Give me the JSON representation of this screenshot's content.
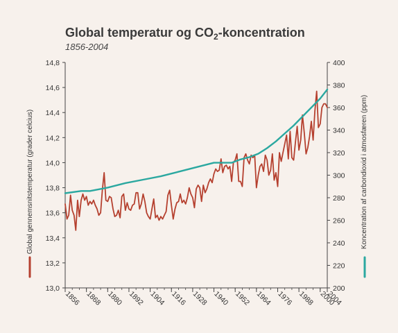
{
  "chart_data": {
    "type": "line",
    "title_main": "Global temperatur og CO",
    "title_sub": "2",
    "title_end": "-koncentration",
    "subtitle": "1856-2004",
    "ylabel_left": "Global gennemsnitstemperatur (grader celcius)",
    "ylabel_right": "Koncentration af carbondioxid i atmosfæren (ppm)",
    "xlim": [
      1856,
      2004
    ],
    "ylim_left": [
      13.0,
      14.8
    ],
    "ylim_right": [
      200,
      400
    ],
    "x_ticks": [
      "1856",
      "1868",
      "1880",
      "1892",
      "1904",
      "1916",
      "1928",
      "1940",
      "1952",
      "1964",
      "1976",
      "1988",
      "2000",
      "2004"
    ],
    "y_left_ticks": [
      "13,0",
      "13,2",
      "13,4",
      "13,6",
      "13,8",
      "14,0",
      "14,2",
      "14,4",
      "14,6",
      "14,8"
    ],
    "y_right_ticks": [
      "200",
      "220",
      "240",
      "260",
      "280",
      "300",
      "320",
      "340",
      "360",
      "380",
      "400"
    ],
    "colors": {
      "temperature": "#b5402f",
      "co2": "#2ba8a0",
      "axis": "#444444"
    },
    "series": [
      {
        "key": "temperature",
        "axis": "left",
        "x": [
          1856,
          1857,
          1858,
          1859,
          1860,
          1861,
          1862,
          1863,
          1864,
          1865,
          1866,
          1867,
          1868,
          1869,
          1870,
          1871,
          1872,
          1873,
          1874,
          1875,
          1876,
          1877,
          1878,
          1879,
          1880,
          1881,
          1882,
          1883,
          1884,
          1885,
          1886,
          1887,
          1888,
          1889,
          1890,
          1891,
          1892,
          1893,
          1894,
          1895,
          1896,
          1897,
          1898,
          1899,
          1900,
          1901,
          1902,
          1903,
          1904,
          1905,
          1906,
          1907,
          1908,
          1909,
          1910,
          1911,
          1912,
          1913,
          1914,
          1915,
          1916,
          1917,
          1918,
          1919,
          1920,
          1921,
          1922,
          1923,
          1924,
          1925,
          1926,
          1927,
          1928,
          1929,
          1930,
          1931,
          1932,
          1933,
          1934,
          1935,
          1936,
          1937,
          1938,
          1939,
          1940,
          1941,
          1942,
          1943,
          1944,
          1945,
          1946,
          1947,
          1948,
          1949,
          1950,
          1951,
          1952,
          1953,
          1954,
          1955,
          1956,
          1957,
          1958,
          1959,
          1960,
          1961,
          1962,
          1963,
          1964,
          1965,
          1966,
          1967,
          1968,
          1969,
          1970,
          1971,
          1972,
          1973,
          1974,
          1975,
          1976,
          1977,
          1978,
          1979,
          1980,
          1981,
          1982,
          1983,
          1984,
          1985,
          1986,
          1987,
          1988,
          1989,
          1990,
          1991,
          1992,
          1993,
          1994,
          1995,
          1996,
          1997,
          1998,
          1999,
          2000,
          2001,
          2002,
          2003,
          2004
        ],
        "values": [
          13.67,
          13.55,
          13.58,
          13.74,
          13.62,
          13.58,
          13.46,
          13.7,
          13.57,
          13.7,
          13.75,
          13.7,
          13.73,
          13.66,
          13.69,
          13.67,
          13.7,
          13.66,
          13.63,
          13.58,
          13.6,
          13.78,
          13.92,
          13.7,
          13.69,
          13.73,
          13.72,
          13.63,
          13.57,
          13.58,
          13.62,
          13.56,
          13.73,
          13.75,
          13.62,
          13.68,
          13.63,
          13.62,
          13.66,
          13.67,
          13.76,
          13.76,
          13.63,
          13.67,
          13.75,
          13.69,
          13.6,
          13.57,
          13.55,
          13.63,
          13.71,
          13.56,
          13.58,
          13.54,
          13.57,
          13.55,
          13.58,
          13.61,
          13.74,
          13.78,
          13.66,
          13.55,
          13.63,
          13.68,
          13.69,
          13.75,
          13.68,
          13.7,
          13.67,
          13.72,
          13.8,
          13.75,
          13.72,
          13.64,
          13.79,
          13.82,
          13.8,
          13.69,
          13.82,
          13.76,
          13.79,
          13.84,
          13.87,
          13.84,
          13.91,
          13.95,
          13.93,
          13.94,
          14.03,
          13.92,
          13.97,
          13.98,
          13.95,
          13.97,
          13.85,
          14.0,
          14.02,
          14.07,
          13.85,
          13.85,
          13.81,
          14.04,
          14.07,
          14.02,
          13.99,
          14.06,
          14.04,
          14.06,
          13.8,
          13.9,
          13.97,
          13.99,
          13.93,
          14.06,
          14.02,
          13.9,
          13.94,
          14.07,
          13.86,
          13.92,
          13.81,
          14.08,
          14.01,
          14.08,
          14.15,
          14.22,
          14.03,
          14.25,
          14.04,
          14.02,
          14.16,
          14.29,
          14.1,
          14.18,
          14.38,
          14.24,
          14.07,
          14.12,
          14.21,
          14.33,
          14.18,
          14.41,
          14.57,
          14.28,
          14.31,
          14.44,
          14.47,
          14.47,
          14.44
        ]
      },
      {
        "key": "co2",
        "axis": "right",
        "x": [
          1856,
          1865,
          1870,
          1880,
          1890,
          1900,
          1910,
          1920,
          1930,
          1940,
          1950,
          1955,
          1960,
          1965,
          1970,
          1975,
          1980,
          1985,
          1990,
          1995,
          2000,
          2004
        ],
        "values": [
          284,
          286,
          286,
          289,
          293,
          296,
          299,
          303,
          307,
          311,
          311,
          314,
          316,
          319,
          324,
          330,
          337,
          344,
          352,
          360,
          368,
          376
        ]
      }
    ]
  }
}
